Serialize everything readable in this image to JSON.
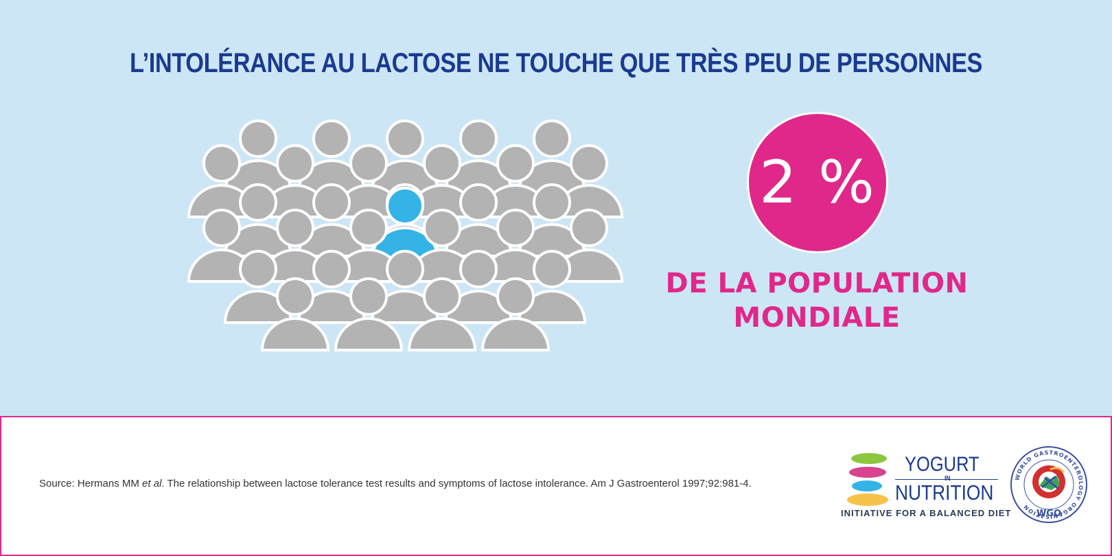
{
  "headline": "L’INTOLÉRANCE AU LACTOSE NE TOUCHE QUE TRÈS PEU DE PERSONNES",
  "stat": {
    "value": "2 %",
    "caption_line1": "DE LA POPULATION",
    "caption_line2": "MONDIALE"
  },
  "crowd": {
    "highlighted_fraction": 0.02,
    "highlight_color": "#34b3e6",
    "person_color": "#b3b3b3"
  },
  "source": {
    "prefix": "Source: Hermans MM ",
    "italic": "et al",
    "suffix": ". The relationship between lactose tolerance test results and symptoms of lactose intolerance. Am J Gastroenterol 1997;92:981-4."
  },
  "logo_yin": {
    "word1": "YOGURT",
    "word2": "IN",
    "word3": "NUTRITION",
    "tagline": "INITIATIVE FOR A BALANCED DIET"
  },
  "logo_wgo": {
    "ring_text": "WORLD GASTROENTEROLOGY ORGANISATION",
    "abbr": "WGO"
  },
  "colors": {
    "panel_bg": "#cce6f6",
    "accent_pink": "#e0288a",
    "headline_blue": "#1b3a8f"
  }
}
